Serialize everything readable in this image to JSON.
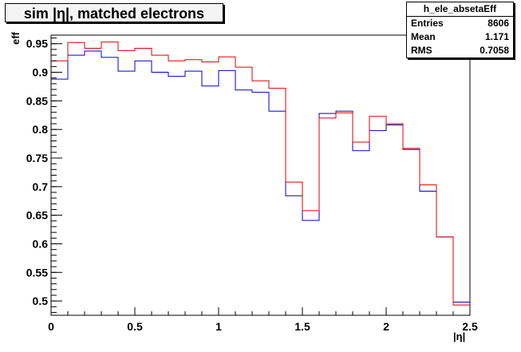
{
  "chart_data": {
    "type": "line",
    "title": "sim |η|, matched electrons",
    "xlabel": "|η|",
    "ylabel": "eff",
    "xlim": [
      0,
      2.5
    ],
    "ylim": [
      0.475,
      0.965
    ],
    "x_ticks": [
      0,
      0.5,
      1,
      1.5,
      2,
      2.5
    ],
    "x_tick_labels": [
      "0",
      "0.5",
      "1",
      "1.5",
      "2",
      "2.5"
    ],
    "y_ticks": [
      0.5,
      0.55,
      0.6,
      0.65,
      0.7,
      0.75,
      0.8,
      0.85,
      0.9,
      0.95
    ],
    "y_tick_labels": [
      "0.5",
      "0.55",
      "0.6",
      "0.65",
      "0.7",
      "0.75",
      "0.8",
      "0.85",
      "0.9",
      "0.95"
    ],
    "bin_edges": [
      0,
      0.1,
      0.2,
      0.3,
      0.4,
      0.5,
      0.6,
      0.7,
      0.8,
      0.9,
      1.0,
      1.1,
      1.2,
      1.3,
      1.4,
      1.5,
      1.6,
      1.7,
      1.8,
      1.9,
      2.0,
      2.1,
      2.2,
      2.3,
      2.4,
      2.5
    ],
    "series": [
      {
        "color": "#0000cc",
        "values": [
          0.888,
          0.93,
          0.937,
          0.926,
          0.902,
          0.92,
          0.9,
          0.893,
          0.902,
          0.876,
          0.903,
          0.869,
          0.865,
          0.832,
          0.684,
          0.641,
          0.828,
          0.832,
          0.763,
          0.798,
          0.808,
          0.765,
          0.692,
          0.612,
          0.498
        ]
      },
      {
        "color": "#dd0000",
        "values": [
          0.92,
          0.952,
          0.942,
          0.953,
          0.938,
          0.942,
          0.93,
          0.92,
          0.922,
          0.918,
          0.927,
          0.909,
          0.885,
          0.872,
          0.708,
          0.658,
          0.82,
          0.829,
          0.778,
          0.823,
          0.81,
          0.767,
          0.703,
          0.612,
          0.493
        ]
      }
    ],
    "stats": {
      "name": "h_ele_absetaEff",
      "rows": [
        {
          "label": "Entries",
          "value": "8606"
        },
        {
          "label": "Mean",
          "value": "1.171"
        },
        {
          "label": "RMS",
          "value": "0.7058"
        }
      ]
    },
    "grid": false
  }
}
